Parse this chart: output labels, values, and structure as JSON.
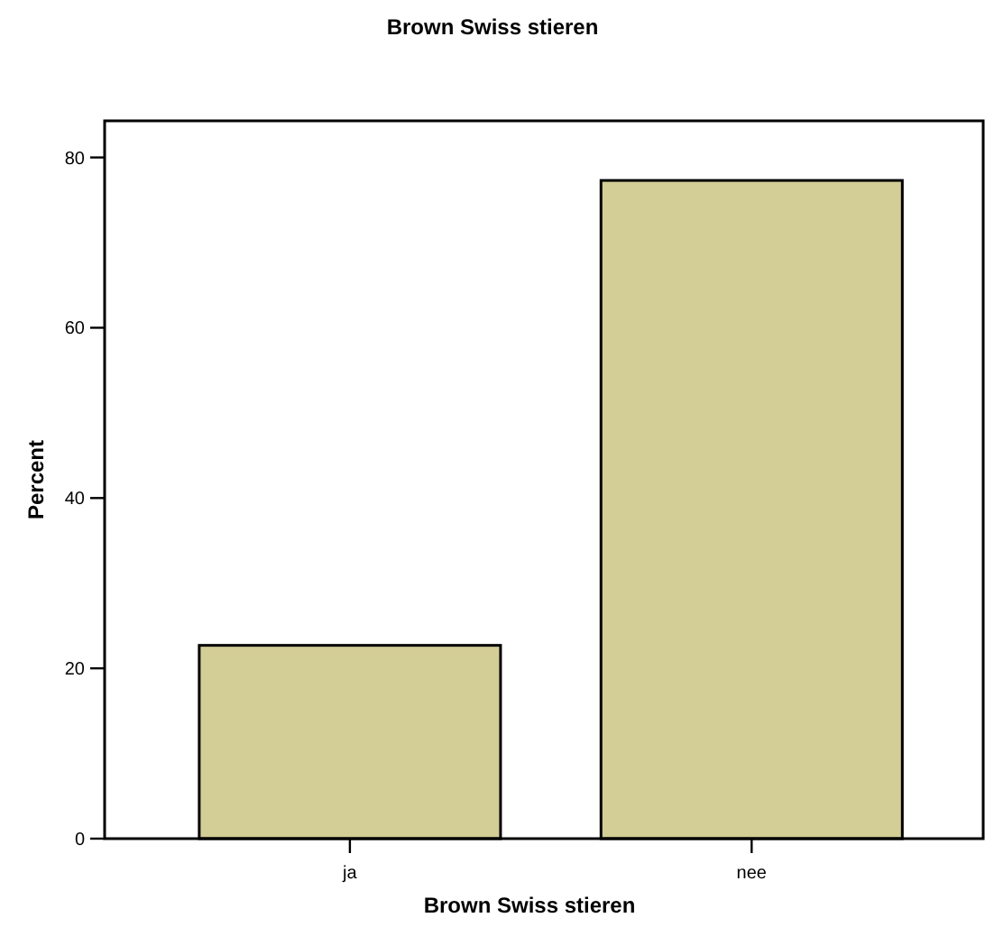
{
  "chart_data": {
    "type": "bar",
    "title": "Brown Swiss stieren",
    "xlabel": "Brown Swiss stieren",
    "ylabel": "Percent",
    "categories": [
      "ja",
      "nee"
    ],
    "values": [
      22.7,
      77.3
    ],
    "color": "#d3cd96",
    "ylim": [
      0,
      84.3
    ],
    "yticks": [
      0,
      20,
      40,
      60,
      80
    ],
    "grid": false
  }
}
